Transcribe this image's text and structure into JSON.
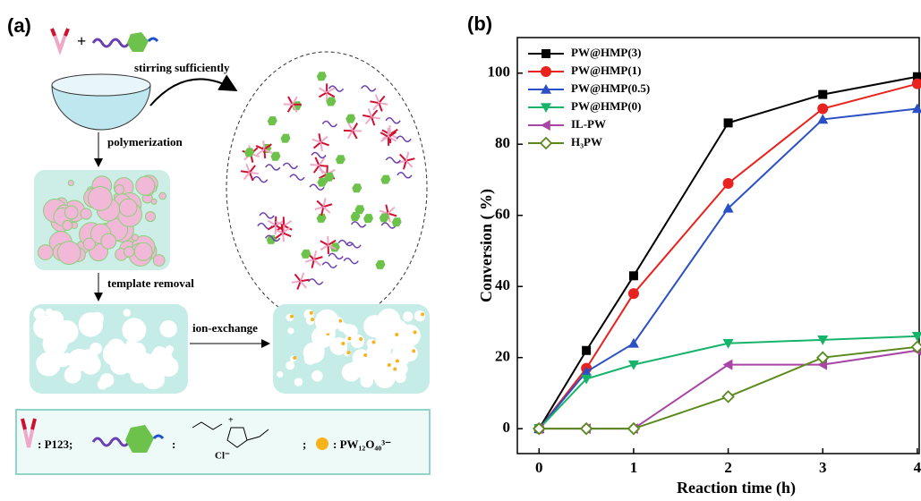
{
  "panel_a": {
    "label": "(a)",
    "stirring": "stirring sufficiently",
    "polymerization": "polymerization",
    "template_removal": "template removal",
    "ion_exchange": "ion-exchange",
    "legend": {
      "p123": ": P123;",
      "monomer": ":",
      "anion": "Cl⁻",
      "sep": ";",
      "pw": ": PW₁₂O₄₀³⁻"
    }
  },
  "chart_data": {
    "type": "line",
    "label": "(b)",
    "x_label": "Reaction time  (h)",
    "y_label": "Conversion ( %)",
    "x": [
      0,
      0.5,
      1,
      2,
      3,
      4
    ],
    "series": [
      {
        "name": "PW@HMP(3)",
        "color": "#000000",
        "marker": "square",
        "values": [
          0,
          22,
          43,
          86,
          94,
          99
        ]
      },
      {
        "name": "PW@HMP(1)",
        "color": "#e8221f",
        "marker": "circle",
        "values": [
          0,
          17,
          38,
          69,
          90,
          97
        ]
      },
      {
        "name": "PW@HMP(0.5)",
        "color": "#2b4fc4",
        "marker": "triangle-up",
        "values": [
          0,
          16,
          24,
          62,
          87,
          90
        ]
      },
      {
        "name": "PW@HMP(0)",
        "color": "#16b36b",
        "marker": "triangle-down",
        "values": [
          0,
          14,
          18,
          24,
          25,
          26
        ]
      },
      {
        "name": "IL-PW",
        "color": "#a845a5",
        "marker": "triangle-left",
        "values": [
          0,
          0,
          0,
          18,
          18,
          22
        ]
      },
      {
        "name": "H₃PW",
        "color": "#5a8a1e",
        "marker": "diamond",
        "values": [
          0,
          0,
          0,
          9,
          20,
          23
        ]
      }
    ],
    "xlim": [
      -0.23,
      4.02
    ],
    "ylim": [
      -7,
      110
    ],
    "xticks": [
      0,
      1,
      2,
      3,
      4
    ],
    "yticks": [
      0,
      20,
      40,
      60,
      80,
      100
    ],
    "legend": "upper left"
  }
}
